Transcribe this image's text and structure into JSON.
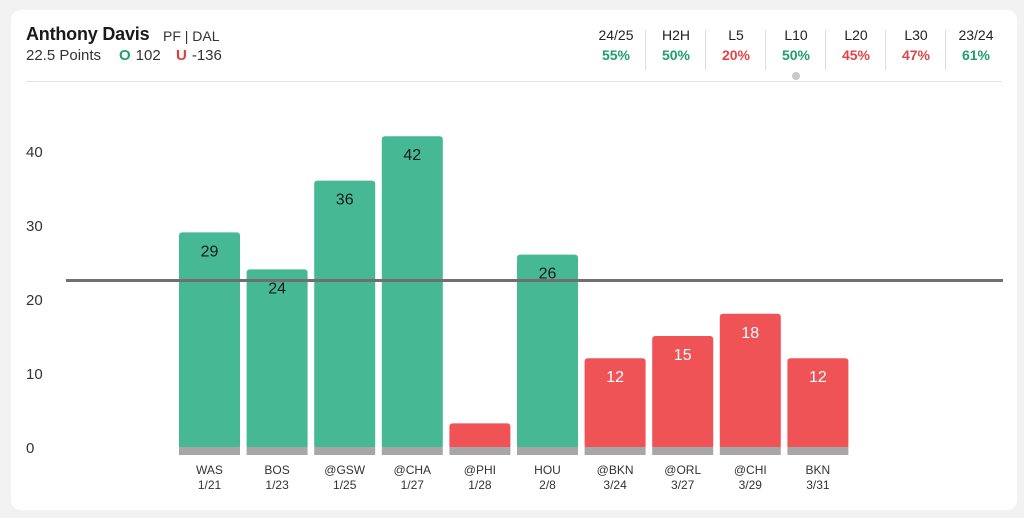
{
  "player": {
    "name": "Anthony Davis",
    "position_team": "PF | DAL",
    "line_text": "22.5 Points",
    "over_mark": "O",
    "over_odds": "102",
    "under_mark": "U",
    "under_odds": "-136"
  },
  "stats": [
    {
      "label": "24/25",
      "value": "55%",
      "color": "green"
    },
    {
      "label": "H2H",
      "value": "50%",
      "color": "green"
    },
    {
      "label": "L5",
      "value": "20%",
      "color": "red"
    },
    {
      "label": "L10",
      "value": "50%",
      "color": "green",
      "active": true
    },
    {
      "label": "L20",
      "value": "45%",
      "color": "red"
    },
    {
      "label": "L30",
      "value": "47%",
      "color": "red"
    },
    {
      "label": "23/24",
      "value": "61%",
      "color": "green"
    }
  ],
  "colors": {
    "over": "#46b994",
    "under": "#ef5356",
    "line": "#707070",
    "base": "#a7a7a7"
  },
  "chart_data": {
    "type": "bar",
    "categories": [
      "WAS 1/21",
      "BOS 1/23",
      "@GSW 1/25",
      "@CHA 1/27",
      "@PHI 1/28",
      "HOU 2/8",
      "@BKN 3/24",
      "@ORL 3/27",
      "@CHI 3/29",
      "BKN 3/31"
    ],
    "opponents": [
      "WAS",
      "BOS",
      "@GSW",
      "@CHA",
      "@PHI",
      "HOU",
      "@BKN",
      "@ORL",
      "@CHI",
      "BKN"
    ],
    "dates": [
      "1/21",
      "1/23",
      "1/25",
      "1/27",
      "1/28",
      "2/8",
      "3/24",
      "3/27",
      "3/29",
      "3/31"
    ],
    "values": [
      29,
      24,
      36,
      42,
      0,
      26,
      12,
      15,
      18,
      12
    ],
    "labels": [
      "29",
      "24",
      "36",
      "42",
      "",
      "26",
      "12",
      "15",
      "18",
      "12"
    ],
    "result": [
      "over",
      "over",
      "over",
      "over",
      "under",
      "over",
      "under",
      "under",
      "under",
      "under"
    ],
    "line_value": 22.5,
    "yticks": [
      0,
      10,
      20,
      30,
      40
    ],
    "ylim": [
      0,
      46
    ],
    "title": "",
    "xlabel": "",
    "ylabel": ""
  }
}
